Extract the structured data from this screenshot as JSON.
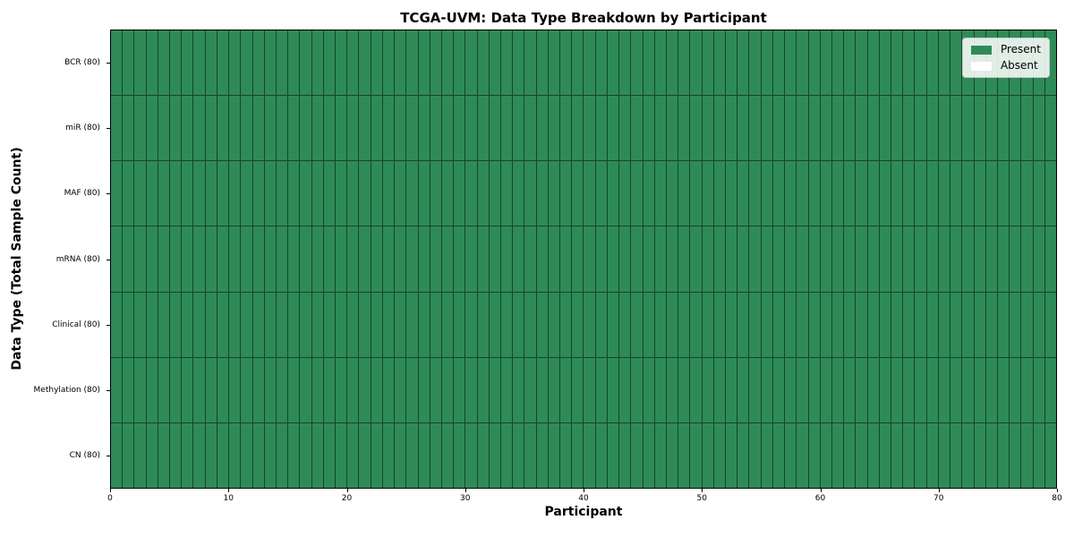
{
  "title": "TCGA-UVM: Data Type Breakdown by Participant",
  "axes": {
    "xlabel": "Participant",
    "ylabel": "Data Type (Total Sample Count)"
  },
  "legend": {
    "items": [
      {
        "label": "Present",
        "color": "#2e8b57"
      },
      {
        "label": "Absent",
        "color": "#ffffff"
      }
    ],
    "position": "upper right"
  },
  "colors": {
    "present": "#2e8b57",
    "absent": "#ffffff",
    "cell_border": "#1a432c",
    "spine": "#000000",
    "background": "#ffffff"
  },
  "chart_data": {
    "type": "heatmap",
    "title": "TCGA-UVM: Data Type Breakdown by Participant",
    "xlabel": "Participant",
    "ylabel": "Data Type (Total Sample Count)",
    "x_range": [
      0,
      80
    ],
    "n_participants": 80,
    "x_tick_values": [
      0,
      10,
      20,
      30,
      40,
      50,
      60,
      70,
      80
    ],
    "grid": "cell borders only, no gridlines",
    "legend_position": "upper right",
    "value_legend": {
      "1": "Present",
      "0": "Absent"
    },
    "rows": [
      {
        "label": "BCR (80)",
        "data_type": "BCR",
        "total_samples": 80,
        "present_count": 80,
        "absent_count": 0
      },
      {
        "label": "miR (80)",
        "data_type": "miR",
        "total_samples": 80,
        "present_count": 80,
        "absent_count": 0
      },
      {
        "label": "MAF (80)",
        "data_type": "MAF",
        "total_samples": 80,
        "present_count": 80,
        "absent_count": 0
      },
      {
        "label": "mRNA (80)",
        "data_type": "mRNA",
        "total_samples": 80,
        "present_count": 80,
        "absent_count": 0
      },
      {
        "label": "Clinical (80)",
        "data_type": "Clinical",
        "total_samples": 80,
        "present_count": 80,
        "absent_count": 0
      },
      {
        "label": "Methylation (80)",
        "data_type": "Methylation",
        "total_samples": 80,
        "present_count": 80,
        "absent_count": 0
      },
      {
        "label": "CN (80)",
        "data_type": "CN",
        "total_samples": 80,
        "present_count": 80,
        "absent_count": 0
      }
    ]
  }
}
